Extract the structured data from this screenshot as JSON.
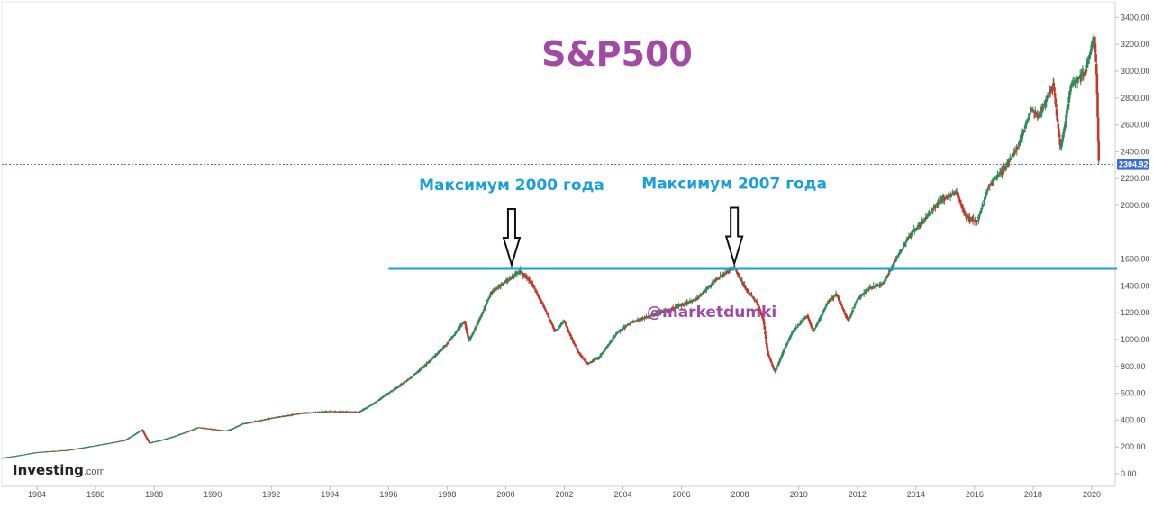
{
  "chart_data": {
    "type": "candlestick",
    "title": "S&P500",
    "xlabel": "",
    "ylabel": "",
    "ylim": [
      0,
      3450
    ],
    "xlim": [
      1982.8,
      2020.8
    ],
    "grid": false,
    "x_ticks": [
      "1984",
      "1986",
      "1988",
      "1990",
      "1992",
      "1994",
      "1996",
      "1998",
      "2000",
      "2002",
      "2004",
      "2006",
      "2008",
      "2010",
      "2012",
      "2014",
      "2016",
      "2018",
      "2020"
    ],
    "y_ticks": [
      "0.00",
      "200.00",
      "400.00",
      "600.00",
      "800.00",
      "1000.00",
      "1200.00",
      "1400.00",
      "1600.00",
      "2000.00",
      "2200.00",
      "2400.00",
      "2600.00",
      "2800.00",
      "3000.00",
      "3200.00",
      "3400.00"
    ],
    "price_anchors": [
      [
        1982.8,
        118
      ],
      [
        1984.0,
        160
      ],
      [
        1985.0,
        175
      ],
      [
        1986.0,
        210
      ],
      [
        1987.0,
        250
      ],
      [
        1987.6,
        330
      ],
      [
        1987.85,
        230
      ],
      [
        1988.5,
        265
      ],
      [
        1989.5,
        345
      ],
      [
        1990.5,
        320
      ],
      [
        1991.0,
        370
      ],
      [
        1992.0,
        415
      ],
      [
        1993.0,
        450
      ],
      [
        1994.0,
        465
      ],
      [
        1995.0,
        460
      ],
      [
        1996.0,
        600
      ],
      [
        1997.0,
        760
      ],
      [
        1998.0,
        970
      ],
      [
        1998.6,
        1140
      ],
      [
        1998.75,
        990
      ],
      [
        1999.5,
        1350
      ],
      [
        2000.0,
        1430
      ],
      [
        2000.5,
        1510
      ],
      [
        2000.9,
        1420
      ],
      [
        2001.3,
        1250
      ],
      [
        2001.7,
        1060
      ],
      [
        2002.0,
        1140
      ],
      [
        2002.5,
        900
      ],
      [
        2002.8,
        820
      ],
      [
        2003.2,
        870
      ],
      [
        2003.8,
        1050
      ],
      [
        2004.3,
        1130
      ],
      [
        2005.0,
        1180
      ],
      [
        2005.8,
        1240
      ],
      [
        2006.5,
        1300
      ],
      [
        2007.2,
        1450
      ],
      [
        2007.8,
        1540
      ],
      [
        2008.2,
        1380
      ],
      [
        2008.6,
        1270
      ],
      [
        2008.8,
        1150
      ],
      [
        2008.95,
        900
      ],
      [
        2009.2,
        760
      ],
      [
        2009.5,
        920
      ],
      [
        2009.8,
        1060
      ],
      [
        2010.3,
        1180
      ],
      [
        2010.5,
        1060
      ],
      [
        2011.0,
        1280
      ],
      [
        2011.3,
        1340
      ],
      [
        2011.7,
        1140
      ],
      [
        2012.0,
        1300
      ],
      [
        2012.4,
        1380
      ],
      [
        2012.9,
        1420
      ],
      [
        2013.3,
        1590
      ],
      [
        2013.8,
        1780
      ],
      [
        2014.3,
        1890
      ],
      [
        2014.8,
        2030
      ],
      [
        2015.4,
        2100
      ],
      [
        2015.7,
        1920
      ],
      [
        2016.1,
        1880
      ],
      [
        2016.5,
        2150
      ],
      [
        2017.0,
        2270
      ],
      [
        2017.5,
        2440
      ],
      [
        2017.95,
        2720
      ],
      [
        2018.2,
        2660
      ],
      [
        2018.7,
        2910
      ],
      [
        2018.95,
        2420
      ],
      [
        2019.3,
        2890
      ],
      [
        2019.8,
        3000
      ],
      [
        2020.1,
        3260
      ],
      [
        2020.18,
        2950
      ],
      [
        2020.25,
        2304.92
      ]
    ],
    "reference_line": {
      "value": 1530,
      "from_year": 1996.0
    },
    "current_price": 2304.92,
    "current_price_label": "2304.92",
    "annotations": [
      {
        "text": "Максимум 2000 года",
        "year": 2000.2,
        "value": 1530
      },
      {
        "text": "Максимум 2007 года",
        "year": 2007.8,
        "value": 1540
      }
    ],
    "watermark": "@marketdumki",
    "colors": {
      "up": "#2e8b57",
      "down": "#c0392b",
      "reference_line": "#1aa0d8",
      "title": "#a04aa3",
      "price_label_bg": "#3b6bd6",
      "current_line": "#3b5fa6"
    }
  },
  "brand": {
    "main": "Investing",
    "sub": ".com"
  }
}
